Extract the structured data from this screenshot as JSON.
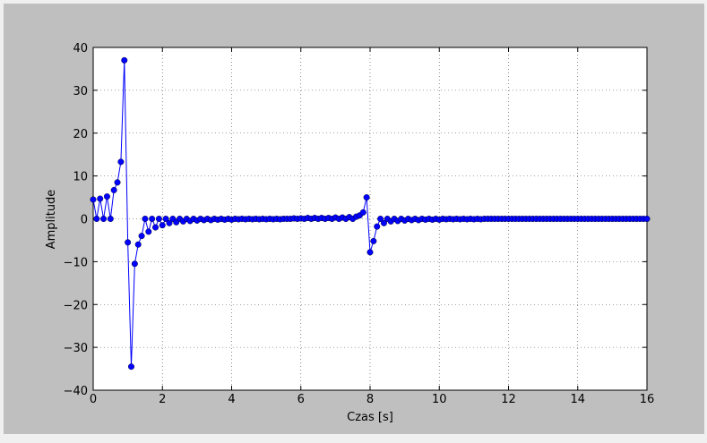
{
  "chart_data": {
    "type": "line",
    "xlabel": "Czas [s]",
    "ylabel": "Amplitude",
    "xlim": [
      0,
      16
    ],
    "ylim": [
      -40,
      40
    ],
    "xticks": [
      0,
      2,
      4,
      6,
      8,
      10,
      12,
      14,
      16
    ],
    "yticks": [
      {
        "value": -40,
        "label": "−40"
      },
      {
        "value": -30,
        "label": "−30"
      },
      {
        "value": -20,
        "label": "−20"
      },
      {
        "value": -10,
        "label": "−10"
      },
      0,
      10,
      20,
      30,
      40
    ],
    "grid": true,
    "series": [
      {
        "color": "#0000ff",
        "x": [
          0,
          0.1,
          0.2,
          0.3,
          0.4,
          0.5,
          0.6,
          0.7,
          0.8,
          0.9,
          1,
          1.1,
          1.2,
          1.3,
          1.4,
          1.5,
          1.6,
          1.7,
          1.8,
          1.9,
          2,
          2.1,
          2.2,
          2.3,
          2.4,
          2.5,
          2.6,
          2.7,
          2.8,
          2.9,
          3,
          3.1,
          3.2,
          3.3,
          3.4,
          3.5,
          3.6,
          3.7,
          3.8,
          3.9,
          4,
          4.1,
          4.2,
          4.3,
          4.4,
          4.5,
          4.6,
          4.7,
          4.8,
          4.9,
          5,
          5.1,
          5.2,
          5.3,
          5.4,
          5.5,
          5.6,
          5.7,
          5.8,
          5.9,
          6,
          6.1,
          6.2,
          6.3,
          6.4,
          6.5,
          6.6,
          6.7,
          6.8,
          6.9,
          7,
          7.1,
          7.2,
          7.3,
          7.4,
          7.5,
          7.6,
          7.7,
          7.8,
          7.9,
          8,
          8.1,
          8.2,
          8.3,
          8.4,
          8.5,
          8.6,
          8.7,
          8.8,
          8.9,
          9,
          9.1,
          9.2,
          9.3,
          9.4,
          9.5,
          9.6,
          9.7,
          9.8,
          9.9,
          10,
          10.1,
          10.2,
          10.3,
          10.4,
          10.5,
          10.6,
          10.7,
          10.8,
          10.9,
          11,
          11.1,
          11.2,
          11.3,
          11.4,
          11.5,
          11.6,
          11.7,
          11.8,
          11.9,
          12,
          12.1,
          12.2,
          12.3,
          12.4,
          12.5,
          12.6,
          12.7,
          12.8,
          12.9,
          13,
          13.1,
          13.2,
          13.3,
          13.4,
          13.5,
          13.6,
          13.7,
          13.8,
          13.9,
          14,
          14.1,
          14.2,
          14.3,
          14.4,
          14.5,
          14.6,
          14.7,
          14.8,
          14.9,
          15,
          15.1,
          15.2,
          15.3,
          15.4,
          15.5,
          15.6,
          15.7,
          15.8,
          15.9,
          16
        ],
        "values": [
          4.5,
          0,
          4.7,
          0,
          5.2,
          0,
          6.7,
          8.5,
          13.3,
          37,
          -5.5,
          -34.5,
          -10.5,
          -6,
          -4,
          0,
          -3,
          0,
          -2,
          0,
          -1.5,
          0,
          -1,
          0,
          -0.8,
          0,
          -0.6,
          0,
          -0.5,
          0,
          -0.4,
          0,
          -0.3,
          0,
          -0.3,
          0,
          -0.2,
          0,
          -0.2,
          0,
          -0.2,
          0,
          -0.1,
          0,
          -0.1,
          0,
          -0.1,
          0,
          -0.1,
          0,
          -0.1,
          0,
          -0.1,
          0,
          -0.1,
          0,
          0,
          0,
          0.1,
          0,
          0.1,
          0,
          0.2,
          0,
          0.2,
          0,
          0.2,
          0,
          0.2,
          0,
          0.3,
          0,
          0.3,
          0,
          0.4,
          0,
          0.5,
          0.8,
          1.5,
          5,
          -7.8,
          -5.2,
          -1.8,
          0,
          -1,
          0,
          -0.6,
          0,
          -0.5,
          0,
          -0.4,
          0,
          -0.3,
          0,
          -0.3,
          0,
          -0.2,
          0,
          -0.2,
          0,
          -0.2,
          0,
          -0.1,
          0,
          -0.1,
          0,
          -0.1,
          0,
          -0.1,
          0,
          -0.1,
          0,
          -0.1,
          0,
          0,
          0,
          0,
          0,
          0,
          0,
          0,
          0,
          0,
          0,
          0,
          0,
          0,
          0,
          0,
          0,
          0,
          0,
          0,
          0,
          0,
          0,
          0,
          0,
          0,
          0,
          0,
          0,
          0,
          0,
          0,
          0,
          0,
          0,
          0,
          0,
          0,
          0,
          0,
          0,
          0,
          0,
          0,
          0,
          0,
          0,
          0
        ]
      }
    ]
  }
}
